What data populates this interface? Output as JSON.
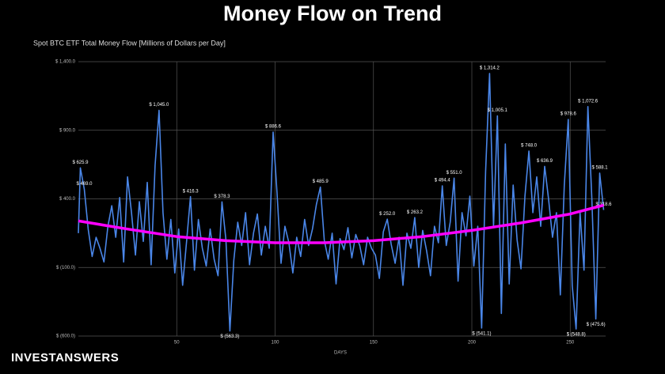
{
  "chart_data": {
    "type": "line",
    "title": "Money Flow on Trend",
    "subtitle": "Spot BTC ETF Total Money Flow [Millions of Dollars per Day]",
    "x_label": "DAYS",
    "brand": "INVESTANSWERS",
    "xlim": [
      0,
      268
    ],
    "xticks": [
      50,
      100,
      150,
      200,
      250
    ],
    "ylim": [
      -600,
      1400
    ],
    "yticks": [
      {
        "value": -600,
        "label": "$ (600.0)"
      },
      {
        "value": -100,
        "label": "$ (100.0)"
      },
      {
        "value": 400,
        "label": "$ 400.0"
      },
      {
        "value": 900,
        "label": "$ 900.0"
      },
      {
        "value": 1400,
        "label": "$ 1,400.0"
      }
    ],
    "grid": true,
    "series": [
      {
        "name": "Money Flow",
        "color": "#4a86e8",
        "x": [
          0,
          1,
          3,
          5,
          7,
          9,
          11,
          13,
          15,
          17,
          19,
          21,
          23,
          25,
          27,
          29,
          31,
          33,
          35,
          37,
          39,
          41,
          43,
          45,
          47,
          49,
          51,
          53,
          55,
          57,
          59,
          61,
          63,
          65,
          67,
          69,
          71,
          73,
          75,
          77,
          79,
          81,
          83,
          85,
          87,
          89,
          91,
          93,
          95,
          97,
          99,
          101,
          103,
          105,
          107,
          109,
          111,
          113,
          115,
          117,
          119,
          121,
          123,
          125,
          127,
          129,
          131,
          133,
          135,
          137,
          139,
          141,
          143,
          145,
          147,
          149,
          151,
          153,
          155,
          157,
          159,
          161,
          163,
          165,
          167,
          169,
          171,
          173,
          175,
          177,
          179,
          181,
          183,
          185,
          187,
          189,
          191,
          193,
          195,
          197,
          199,
          201,
          203,
          205,
          207,
          209,
          211,
          213,
          215,
          217,
          219,
          221,
          223,
          225,
          227,
          229,
          231,
          233,
          235,
          237,
          239,
          241,
          243,
          245,
          247,
          249,
          251,
          253,
          255,
          257,
          259,
          261,
          263,
          265,
          267
        ],
        "values": [
          150,
          625.9,
          469.0,
          180,
          -20,
          120,
          40,
          -60,
          200,
          350,
          120,
          410,
          -60,
          560,
          300,
          -10,
          380,
          90,
          520,
          -80,
          644,
          1045.0,
          300,
          -40,
          250,
          -140,
          180,
          -230,
          90,
          416.3,
          -120,
          250,
          40,
          -90,
          180,
          -40,
          -160,
          378.3,
          100,
          -563.3,
          -50,
          230,
          60,
          300,
          -80,
          150,
          290,
          -10,
          200,
          40,
          886.6,
          438,
          -70,
          200,
          80,
          -140,
          120,
          -20,
          250,
          60,
          180,
          360,
          485.9,
          100,
          -40,
          150,
          -220,
          110,
          30,
          190,
          -30,
          140,
          60,
          -80,
          120,
          40,
          -10,
          -180,
          160,
          252.0,
          70,
          -70,
          120,
          -230,
          150,
          40,
          263.2,
          -100,
          170,
          20,
          -160,
          200,
          80,
          494.4,
          60,
          230,
          551.0,
          -200,
          300,
          130,
          420,
          -90,
          200,
          -541.1,
          600,
          1314.2,
          200,
          1005.1,
          -435,
          800,
          -220,
          500,
          100,
          -110,
          420,
          748.0,
          300,
          560,
          200,
          636.9,
          400,
          120,
          300,
          -300,
          500,
          978.6,
          -230,
          -548.8,
          300,
          -120,
          1072.6,
          400,
          -475.6,
          588.1,
          318.6
        ],
        "value_labels": [
          null,
          "$ 625.9",
          "$ 469.0",
          null,
          null,
          null,
          null,
          null,
          null,
          null,
          null,
          null,
          null,
          null,
          null,
          null,
          null,
          null,
          null,
          null,
          null,
          "$ 1,045.0",
          null,
          null,
          null,
          null,
          null,
          null,
          null,
          "$ 416.3",
          null,
          null,
          null,
          null,
          null,
          null,
          null,
          "$ 378.3",
          null,
          "$ (563.3)",
          null,
          null,
          null,
          null,
          null,
          null,
          null,
          null,
          null,
          null,
          "$ 886.6",
          null,
          null,
          null,
          null,
          null,
          null,
          null,
          null,
          null,
          null,
          null,
          "$ 485.9",
          null,
          null,
          null,
          null,
          null,
          null,
          null,
          null,
          null,
          null,
          null,
          null,
          null,
          null,
          null,
          null,
          "$ 252.0",
          null,
          null,
          null,
          null,
          null,
          null,
          "$ 263.2",
          null,
          null,
          null,
          null,
          null,
          null,
          "$ 494.4",
          null,
          null,
          "$ 551.0",
          null,
          null,
          null,
          null,
          null,
          null,
          "$ (541.1)",
          null,
          "$ 1,314.2",
          null,
          "$ 1,005.1",
          null,
          null,
          null,
          null,
          null,
          null,
          null,
          "$ 748.0",
          null,
          null,
          null,
          "$ 636.9",
          null,
          null,
          null,
          null,
          null,
          "$ 978.6",
          null,
          "$ (548.8)",
          null,
          null,
          "$ 1,072.6",
          null,
          "$ (475.6)",
          "$ 588.1",
          "$ 318.6"
        ]
      },
      {
        "name": "Trend",
        "color": "#ff00ff",
        "x": [
          0,
          25,
          50,
          75,
          100,
          125,
          150,
          175,
          200,
          225,
          250,
          267
        ],
        "values": [
          239,
          180,
          125,
          95,
          80,
          80,
          95,
          125,
          170,
          225,
          290,
          354
        ]
      }
    ]
  }
}
